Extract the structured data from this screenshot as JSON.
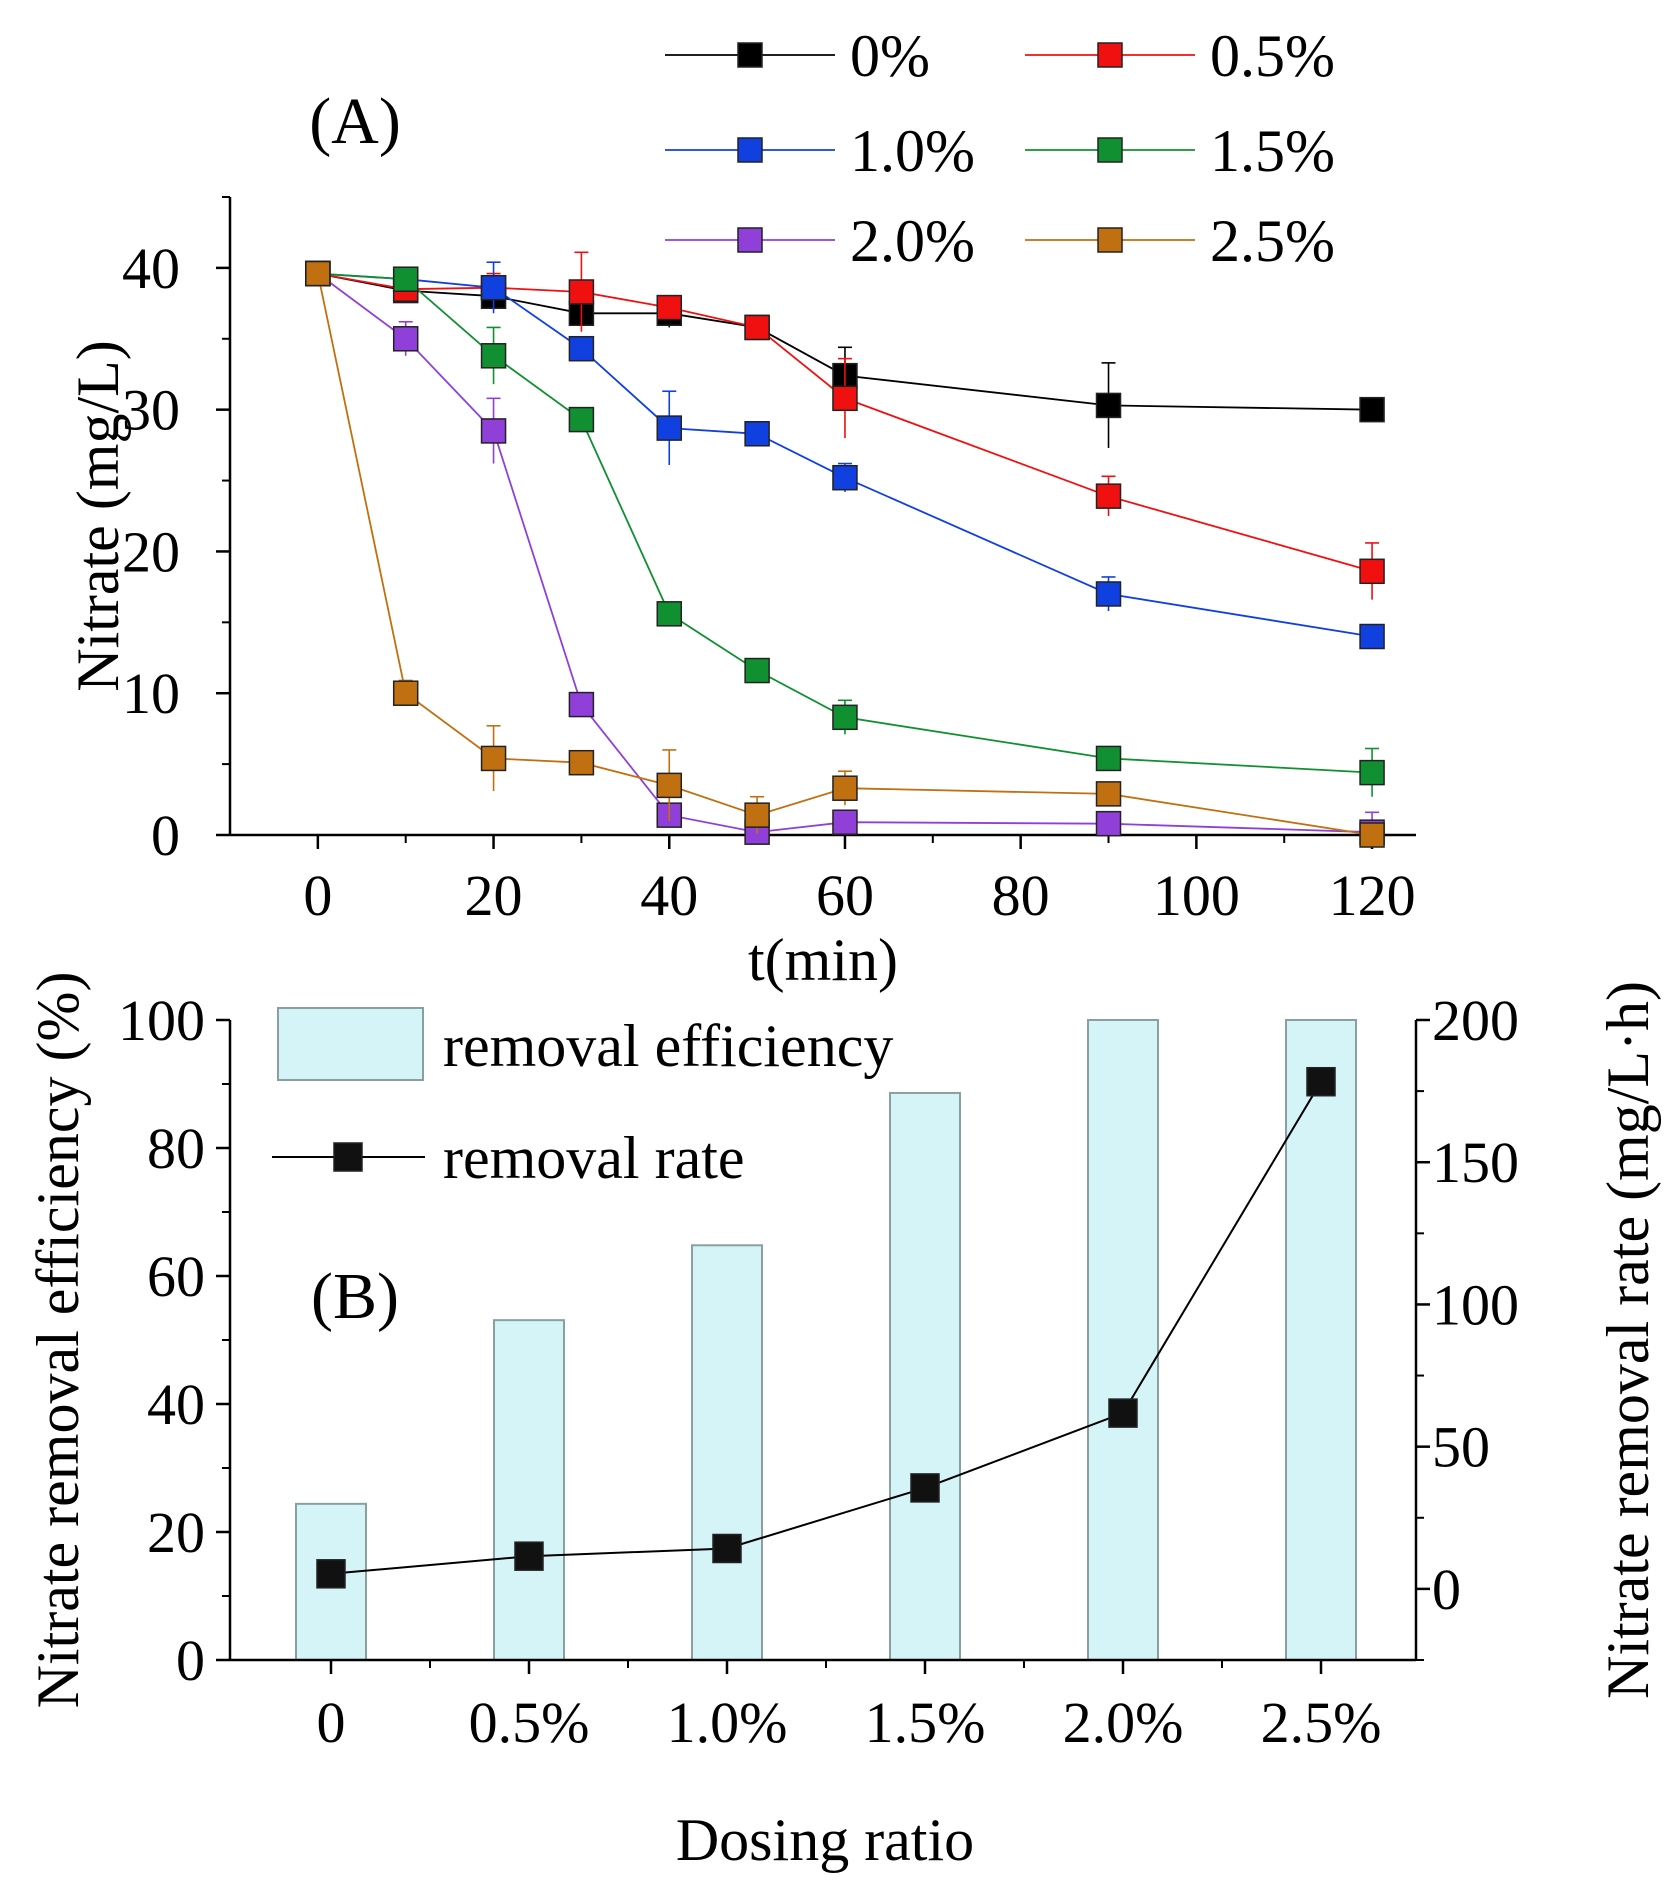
{
  "chart_data": [
    {
      "panel": "(A)",
      "type": "line",
      "xlabel": "t(min)",
      "ylabel": "Nitrate (mg/L)",
      "xlim": [
        -10,
        125
      ],
      "ylim": [
        0,
        45
      ],
      "xticks": [
        0,
        20,
        40,
        60,
        80,
        100,
        120
      ],
      "yticks": [
        0,
        10,
        20,
        30,
        40
      ],
      "x": [
        0,
        10,
        20,
        30,
        40,
        50,
        60,
        90,
        120
      ],
      "series": [
        {
          "name": "0%",
          "color": "#000000",
          "values": [
            39.6,
            38.4,
            38.0,
            36.8,
            36.8,
            35.8,
            32.4,
            30.3,
            30.0
          ],
          "errors": [
            0.3,
            0.5,
            0.8,
            0.9,
            1.0,
            0.5,
            2.0,
            3.0,
            0.5
          ]
        },
        {
          "name": "0.5%",
          "color": "#f01010",
          "values": [
            39.6,
            38.5,
            38.6,
            38.3,
            37.2,
            35.8,
            30.8,
            23.9,
            18.6
          ],
          "errors": [
            0.3,
            0.5,
            1.0,
            2.8,
            0.8,
            0.4,
            2.8,
            1.4,
            2.0
          ]
        },
        {
          "name": "1.0%",
          "color": "#1040e0",
          "values": [
            39.6,
            39.2,
            38.6,
            34.3,
            28.7,
            28.3,
            25.2,
            17.0,
            14.0
          ],
          "errors": [
            0.3,
            0.5,
            1.8,
            0.5,
            2.6,
            0.4,
            1.0,
            1.2,
            0.5
          ]
        },
        {
          "name": "1.5%",
          "color": "#109030",
          "values": [
            39.6,
            39.2,
            33.8,
            29.3,
            15.6,
            11.6,
            8.3,
            5.4,
            4.4
          ],
          "errors": [
            0.3,
            0.5,
            2.0,
            0.5,
            0.5,
            0.5,
            1.2,
            0.8,
            1.7
          ]
        },
        {
          "name": "2.0%",
          "color": "#9040d8",
          "values": [
            39.6,
            35.0,
            28.5,
            9.2,
            1.4,
            0.2,
            0.9,
            0.8,
            0.2
          ],
          "errors": [
            0.3,
            1.2,
            2.3,
            0.5,
            0.8,
            0.3,
            0.5,
            0.5,
            1.4
          ]
        },
        {
          "name": "2.5%",
          "color": "#c07010",
          "values": [
            39.6,
            10.0,
            5.4,
            5.1,
            3.5,
            1.4,
            3.3,
            2.9,
            0.0
          ],
          "errors": [
            0.3,
            0.9,
            2.3,
            0.5,
            2.5,
            1.3,
            1.2,
            0.5,
            0.3
          ]
        }
      ]
    },
    {
      "panel": "(B)",
      "type": "bar",
      "xlabel": "Dosing ratio",
      "ylabel": "Nitrate removal efficiency (%)",
      "ylabel_right": "Nitrate removal rate (mg/L·h)",
      "categories": [
        "0",
        "0.5%",
        "1.0%",
        "1.5%",
        "2.0%",
        "2.5%"
      ],
      "ylim": [
        0,
        100
      ],
      "ylim_right": [
        -25,
        200
      ],
      "yticks": [
        0,
        20,
        40,
        60,
        80,
        100
      ],
      "yticks_right": [
        0,
        50,
        100,
        150,
        200
      ],
      "series": [
        {
          "name": "removal efficiency",
          "type": "bar",
          "axis": "left",
          "color": "#d4f4f8",
          "values": [
            24.4,
            53.1,
            64.8,
            88.6,
            100,
            100
          ]
        },
        {
          "name": "removal rate",
          "type": "line",
          "axis": "right",
          "color": "#000000",
          "values": [
            5.3,
            11.5,
            14.2,
            35.5,
            61.8,
            178.3
          ]
        }
      ]
    }
  ]
}
